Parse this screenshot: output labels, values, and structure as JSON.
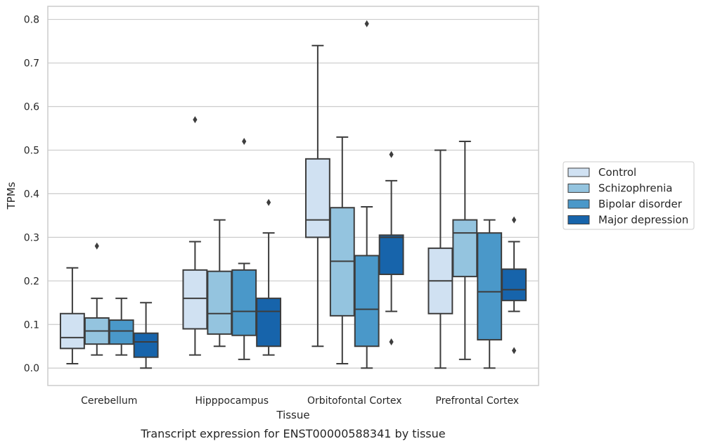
{
  "chart_data": {
    "type": "box",
    "title": "",
    "caption": "Transcript expression for ENST00000588341 by tissue",
    "xlabel": "Tissue",
    "ylabel": "TPMs",
    "ylim": [
      -0.04,
      0.83
    ],
    "yticks": [
      "0.0",
      "0.1",
      "0.2",
      "0.3",
      "0.4",
      "0.5",
      "0.6",
      "0.7",
      "0.8"
    ],
    "grid": "horizontal",
    "legend_position": "right",
    "categories": [
      "Cerebellum",
      "Hipppocampus",
      "Orbitofontal Cortex",
      "Prefrontal Cortex"
    ],
    "series": [
      {
        "name": "Control",
        "color": "#d0e1f2",
        "boxes": [
          {
            "whisker_low": 0.01,
            "q1": 0.045,
            "median": 0.07,
            "q3": 0.125,
            "whisker_high": 0.23,
            "outliers": []
          },
          {
            "whisker_low": 0.03,
            "q1": 0.09,
            "median": 0.16,
            "q3": 0.225,
            "whisker_high": 0.29,
            "outliers": [
              0.57
            ]
          },
          {
            "whisker_low": 0.05,
            "q1": 0.3,
            "median": 0.34,
            "q3": 0.48,
            "whisker_high": 0.74,
            "outliers": []
          },
          {
            "whisker_low": 0.0,
            "q1": 0.125,
            "median": 0.2,
            "q3": 0.275,
            "whisker_high": 0.5,
            "outliers": []
          }
        ]
      },
      {
        "name": "Schizophrenia",
        "color": "#94c4df",
        "boxes": [
          {
            "whisker_low": 0.03,
            "q1": 0.055,
            "median": 0.085,
            "q3": 0.115,
            "whisker_high": 0.16,
            "outliers": [
              0.28
            ]
          },
          {
            "whisker_low": 0.05,
            "q1": 0.078,
            "median": 0.125,
            "q3": 0.222,
            "whisker_high": 0.34,
            "outliers": []
          },
          {
            "whisker_low": 0.01,
            "q1": 0.12,
            "median": 0.245,
            "q3": 0.368,
            "whisker_high": 0.53,
            "outliers": []
          },
          {
            "whisker_low": 0.02,
            "q1": 0.21,
            "median": 0.31,
            "q3": 0.34,
            "whisker_high": 0.52,
            "outliers": []
          }
        ]
      },
      {
        "name": "Bipolar disorder",
        "color": "#4a98c9",
        "boxes": [
          {
            "whisker_low": 0.03,
            "q1": 0.055,
            "median": 0.085,
            "q3": 0.11,
            "whisker_high": 0.16,
            "outliers": []
          },
          {
            "whisker_low": 0.02,
            "q1": 0.075,
            "median": 0.13,
            "q3": 0.225,
            "whisker_high": 0.24,
            "outliers": [
              0.52
            ]
          },
          {
            "whisker_low": 0.0,
            "q1": 0.05,
            "median": 0.135,
            "q3": 0.258,
            "whisker_high": 0.37,
            "outliers": [
              0.79
            ]
          },
          {
            "whisker_low": 0.0,
            "q1": 0.065,
            "median": 0.175,
            "q3": 0.31,
            "whisker_high": 0.34,
            "outliers": []
          }
        ]
      },
      {
        "name": "Major depression",
        "color": "#1764ab",
        "boxes": [
          {
            "whisker_low": 0.0,
            "q1": 0.025,
            "median": 0.06,
            "q3": 0.08,
            "whisker_high": 0.15,
            "outliers": []
          },
          {
            "whisker_low": 0.03,
            "q1": 0.05,
            "median": 0.13,
            "q3": 0.16,
            "whisker_high": 0.31,
            "outliers": [
              0.38
            ]
          },
          {
            "whisker_low": 0.13,
            "q1": 0.215,
            "median": 0.3,
            "q3": 0.305,
            "whisker_high": 0.43,
            "outliers": [
              0.49,
              0.06
            ]
          },
          {
            "whisker_low": 0.13,
            "q1": 0.155,
            "median": 0.18,
            "q3": 0.227,
            "whisker_high": 0.29,
            "outliers": [
              0.34,
              0.04
            ]
          }
        ]
      }
    ]
  }
}
